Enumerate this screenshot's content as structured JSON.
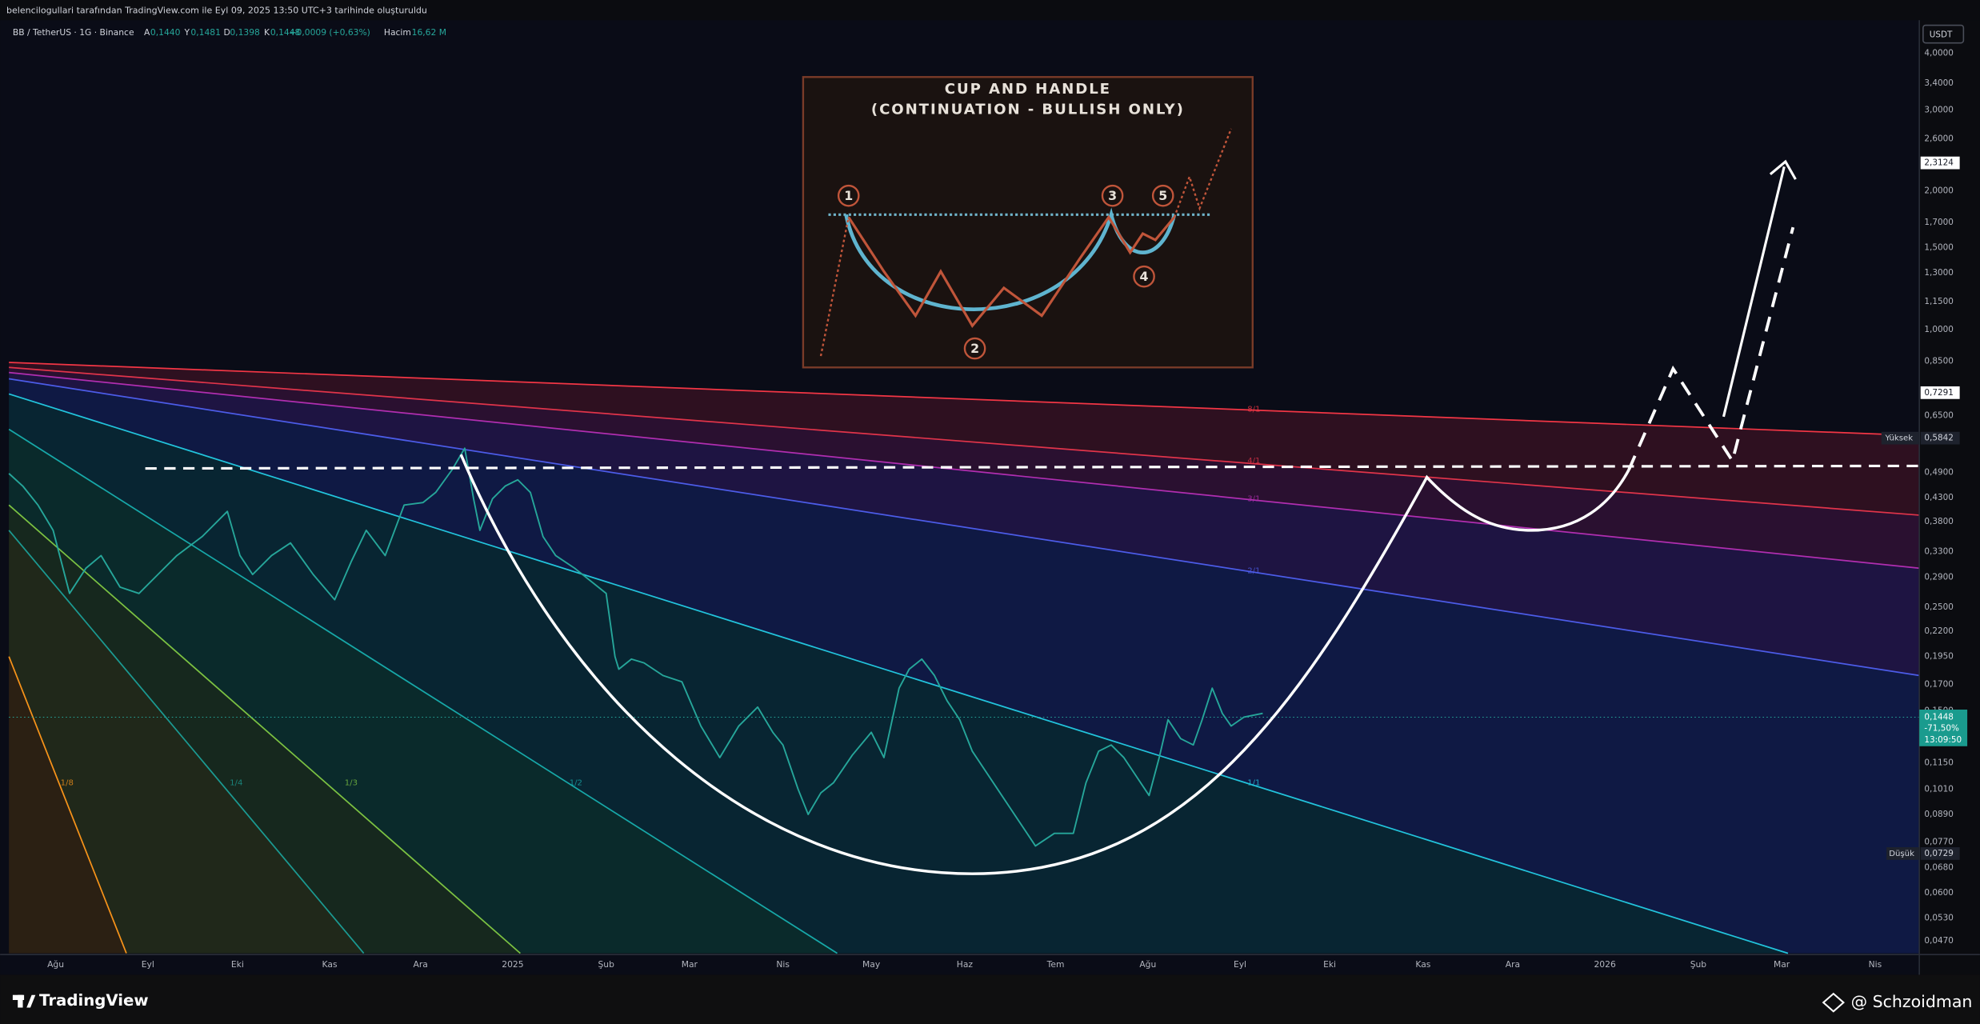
{
  "header": {
    "caption": "belencilogullari tarafından TradingView.com ile Eyl 09, 2025 13:50 UTC+3 tarihinde oluşturuldu"
  },
  "symbol": {
    "name": "BB / TetherUS · 1G · Binance",
    "fields": [
      {
        "label": "A",
        "value": "0,1440"
      },
      {
        "label": "Y",
        "value": "0,1481"
      },
      {
        "label": "D",
        "value": "0,1398"
      },
      {
        "label": "K",
        "value": "0,1448"
      }
    ],
    "change": "+0,0009 (+0,63%)",
    "volume_label": "Hacim",
    "volume": "16,62 M"
  },
  "price_axis": {
    "currency": "USDT",
    "labels": [
      "4,0000",
      "3,4000",
      "3,0000",
      "2,6000",
      "2,0000",
      "1,7000",
      "1,5000",
      "1,3000",
      "1,1500",
      "1,0000",
      "0,8500",
      "0,6500",
      "0,4900",
      "0,4300",
      "0,3800",
      "0,3300",
      "0,2900",
      "0,2500",
      "0,2200",
      "0,1950",
      "0,1700",
      "0,1500",
      "0,1150",
      "0,1010",
      "0,0890",
      "0,0770",
      "0,0680",
      "0,0600",
      "0,0530",
      "0,0470"
    ],
    "target": "2,3124",
    "level": "0,7291",
    "high_label": "Yüksek",
    "high": "0,5842",
    "low_label": "Düşük",
    "low": "0,0729",
    "last": "0,1448",
    "last_change": "-71,50%",
    "countdown": "13:09:50"
  },
  "time_axis": {
    "labels": [
      "Ağu",
      "Eyl",
      "Eki",
      "Kas",
      "Ara",
      "2025",
      "Şub",
      "Mar",
      "Nis",
      "May",
      "Haz",
      "Tem",
      "Ağu",
      "Eyl",
      "Eki",
      "Kas",
      "Ara",
      "2026",
      "Şub",
      "Mar",
      "Nis"
    ]
  },
  "fan": {
    "labels": [
      "8/1",
      "4/1",
      "3/1",
      "2/1",
      "1/1",
      "1/2",
      "1/3",
      "1/4",
      "1/8"
    ]
  },
  "inset": {
    "title": "CUP AND HANDLE",
    "subtitle": "(CONTINUATION - BULLISH ONLY)",
    "points": [
      "1",
      "2",
      "3",
      "4",
      "5"
    ]
  },
  "footer": {
    "brand": "TradingView",
    "author": "@ Schzoidman"
  }
}
